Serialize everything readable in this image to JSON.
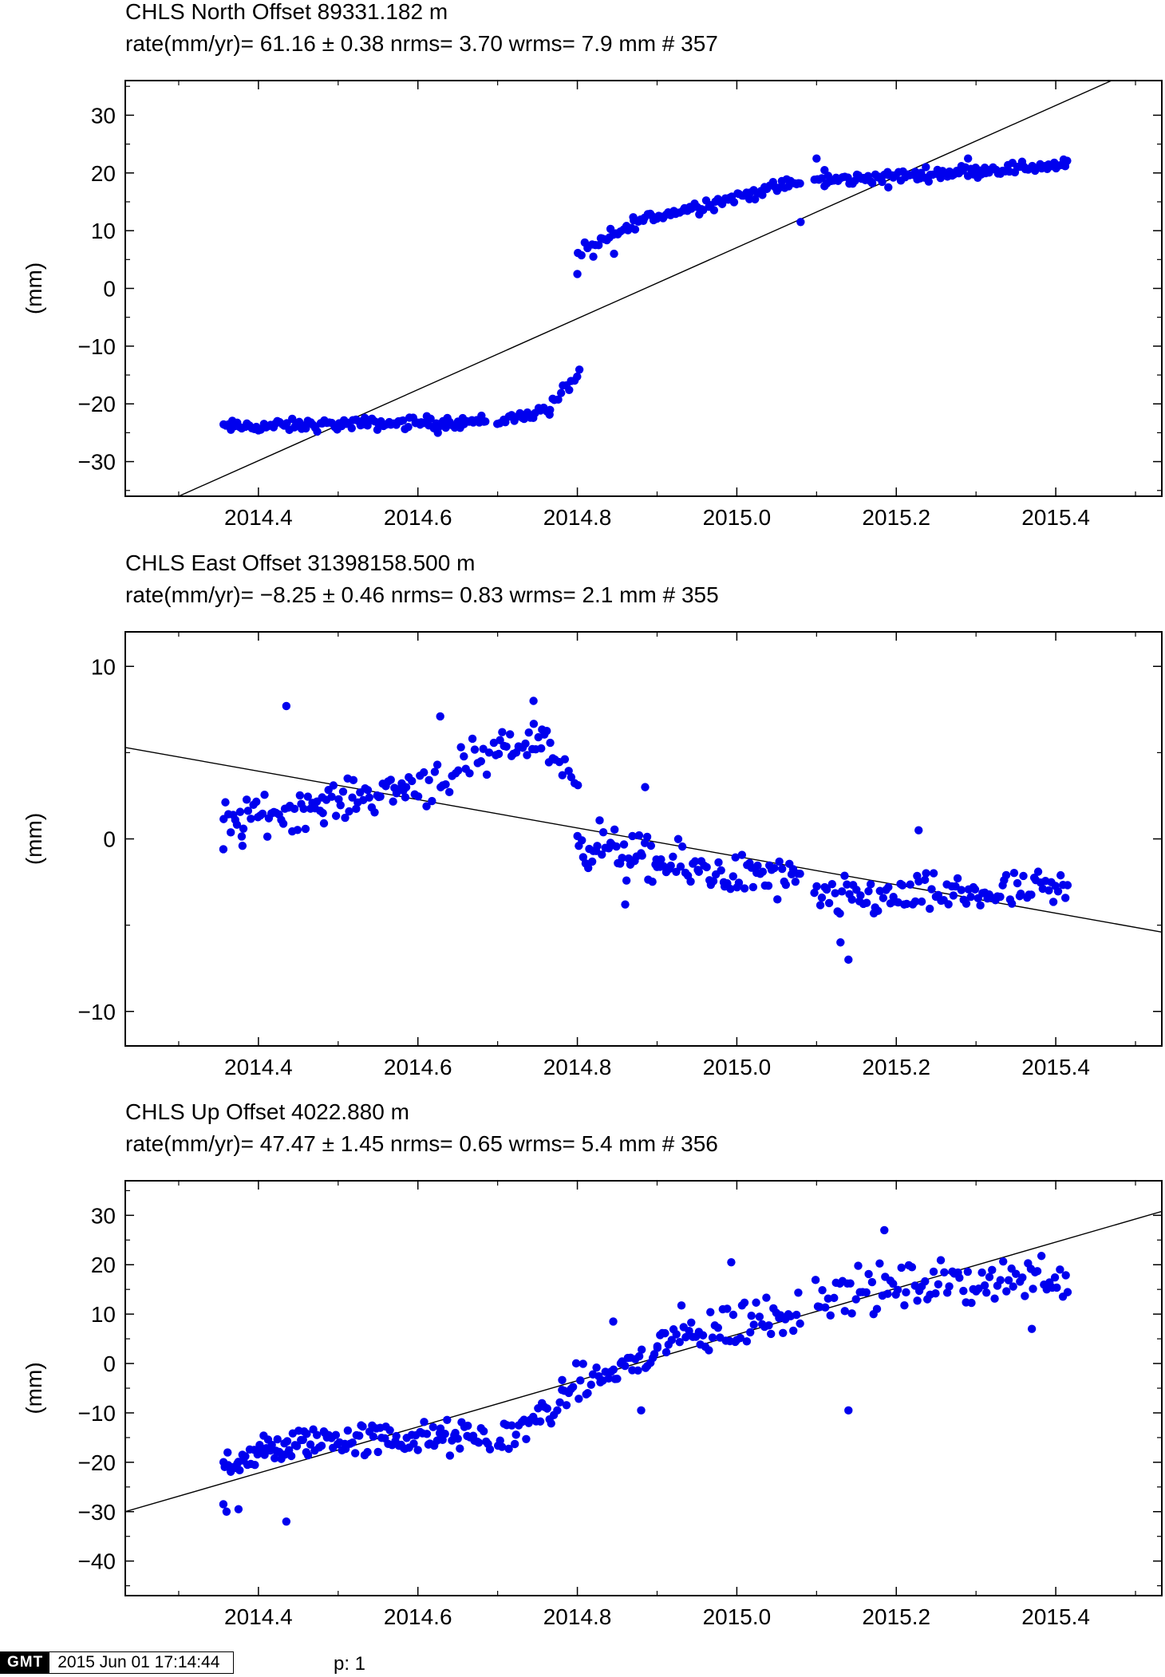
{
  "colors": {
    "points": "#0000ee",
    "fit_line": "#000000",
    "axes": "#000000",
    "background": "#ffffff"
  },
  "footer": {
    "logo_text": "GMT",
    "logo_icon": "gmt-logo-icon",
    "timestamp": "2015 Jun 01 17:14:44",
    "page": "p: 1"
  },
  "chart_data": [
    {
      "type": "scatter",
      "title": "CHLS  North Offset     89331.182 m",
      "subtitle": "rate(mm/yr)=   61.16 ±  0.38  nrms=  3.70  wrms=   7.9 mm # 357",
      "xlabel": "",
      "ylabel": "(mm)",
      "xlim": [
        2014.233,
        2015.533
      ],
      "ylim": [
        -36,
        36
      ],
      "xticks": [
        2014.4,
        2014.6,
        2014.8,
        2015.0,
        2015.2,
        2015.4
      ],
      "xtick_labels": [
        "2014.4",
        "2014.6",
        "2014.8",
        "2015.0",
        "2015.2",
        "2015.4"
      ],
      "yticks": [
        30,
        20,
        10,
        0,
        -10,
        -20,
        -30
      ],
      "ytick_labels": [
        "30",
        "20",
        "10",
        "0",
        "−10",
        "−20",
        "−30"
      ],
      "grid": false,
      "fit_line": [
        [
          2014.3,
          -36
        ],
        [
          2015.47,
          36
        ]
      ],
      "segments": [
        {
          "x0": 2014.356,
          "x1": 2014.685,
          "y0": -24.0,
          "y1": -23.0,
          "noise": 0.9,
          "n": 112
        },
        {
          "x0": 2014.7,
          "x1": 2014.765,
          "y0": -23.0,
          "y1": -21.0,
          "noise": 0.9,
          "n": 20
        },
        {
          "x0": 2014.765,
          "x1": 2014.803,
          "y0": -20.5,
          "y1": -14.5,
          "noise": 0.9,
          "n": 12
        },
        {
          "x0": 2014.801,
          "x1": 2014.83,
          "y0": 6.0,
          "y1": 8.0,
          "noise": 1.0,
          "n": 8
        },
        {
          "x0": 2014.83,
          "x1": 2014.87,
          "y0": 8.0,
          "y1": 11.0,
          "noise": 1.2,
          "n": 14
        },
        {
          "x0": 2014.87,
          "x1": 2015.08,
          "y0": 11.5,
          "y1": 18.5,
          "noise": 1.0,
          "n": 72
        },
        {
          "x0": 2015.098,
          "x1": 2015.415,
          "y0": 18.5,
          "y1": 21.5,
          "noise": 0.9,
          "n": 110
        }
      ],
      "outliers": [
        [
          2014.8,
          2.5
        ],
        [
          2014.82,
          5.5
        ],
        [
          2014.846,
          6.0
        ],
        [
          2015.08,
          11.5
        ],
        [
          2015.1,
          22.5
        ],
        [
          2015.11,
          20.5
        ],
        [
          2015.19,
          17.5
        ],
        [
          2015.29,
          22.5
        ],
        [
          2014.625,
          -25.0
        ]
      ]
    },
    {
      "type": "scatter",
      "title": "CHLS  East Offset  31398158.500 m",
      "subtitle": "rate(mm/yr)=   −8.25 ±  0.46  nrms=  0.83  wrms=   2.1 mm # 355",
      "xlabel": "",
      "ylabel": "(mm)",
      "xlim": [
        2014.233,
        2015.533
      ],
      "ylim": [
        -12,
        12
      ],
      "xticks": [
        2014.4,
        2014.6,
        2014.8,
        2015.0,
        2015.2,
        2015.4
      ],
      "xtick_labels": [
        "2014.4",
        "2014.6",
        "2014.8",
        "2015.0",
        "2015.2",
        "2015.4"
      ],
      "yticks": [
        10,
        0,
        -10
      ],
      "ytick_labels": [
        "10",
        "0",
        "−10"
      ],
      "grid": false,
      "fit_line": [
        [
          2014.233,
          5.3
        ],
        [
          2015.533,
          -5.4
        ]
      ],
      "segments": [
        {
          "x0": 2014.356,
          "x1": 2014.48,
          "y0": 1.0,
          "y1": 2.0,
          "noise": 1.0,
          "n": 44
        },
        {
          "x0": 2014.48,
          "x1": 2014.585,
          "y0": 2.0,
          "y1": 3.0,
          "noise": 0.9,
          "n": 38
        },
        {
          "x0": 2014.585,
          "x1": 2014.69,
          "y0": 3.0,
          "y1": 4.5,
          "noise": 1.2,
          "n": 30
        },
        {
          "x0": 2014.695,
          "x1": 2014.765,
          "y0": 5.0,
          "y1": 6.0,
          "noise": 0.8,
          "n": 26
        },
        {
          "x0": 2014.765,
          "x1": 2014.8,
          "y0": 5.0,
          "y1": 3.0,
          "noise": 0.9,
          "n": 10
        },
        {
          "x0": 2014.8,
          "x1": 2014.9,
          "y0": 0.0,
          "y1": -1.5,
          "noise": 1.2,
          "n": 40
        },
        {
          "x0": 2014.9,
          "x1": 2015.08,
          "y0": -1.5,
          "y1": -2.5,
          "noise": 1.1,
          "n": 62
        },
        {
          "x0": 2015.098,
          "x1": 2015.415,
          "y0": -3.5,
          "y1": -3.0,
          "noise": 1.0,
          "n": 105
        }
      ],
      "outliers": [
        [
          2014.435,
          7.7
        ],
        [
          2014.628,
          7.1
        ],
        [
          2014.745,
          8.0
        ],
        [
          2014.885,
          3.0
        ],
        [
          2015.228,
          0.5
        ],
        [
          2015.14,
          -7.0
        ],
        [
          2015.13,
          -6.0
        ],
        [
          2014.86,
          -3.8
        ],
        [
          2014.38,
          -0.4
        ],
        [
          2014.356,
          -0.6
        ]
      ]
    },
    {
      "type": "scatter",
      "title": "CHLS  Up Offset      4022.880 m",
      "subtitle": "rate(mm/yr)=   47.47 ±  1.45  nrms=  0.65  wrms=   5.4 mm # 356",
      "xlabel": "",
      "ylabel": "(mm)",
      "xlim": [
        2014.233,
        2015.533
      ],
      "ylim": [
        -47,
        37
      ],
      "xticks": [
        2014.4,
        2014.6,
        2014.8,
        2015.0,
        2015.2,
        2015.4
      ],
      "xtick_labels": [
        "2014.4",
        "2014.6",
        "2014.8",
        "2015.0",
        "2015.2",
        "2015.4"
      ],
      "yticks": [
        30,
        20,
        10,
        0,
        -10,
        -20,
        -30,
        -40
      ],
      "ytick_labels": [
        "30",
        "20",
        "10",
        "0",
        "−10",
        "−20",
        "−30",
        "−40"
      ],
      "grid": false,
      "fit_line": [
        [
          2014.233,
          -30.0
        ],
        [
          2015.533,
          30.8
        ]
      ],
      "segments": [
        {
          "x0": 2014.356,
          "x1": 2014.46,
          "y0": -20.0,
          "y1": -16.0,
          "noise": 3.0,
          "n": 45
        },
        {
          "x0": 2014.46,
          "x1": 2014.69,
          "y0": -15.5,
          "y1": -15.0,
          "noise": 3.0,
          "n": 88
        },
        {
          "x0": 2014.7,
          "x1": 2014.78,
          "y0": -16.0,
          "y1": -8.0,
          "noise": 3.0,
          "n": 28
        },
        {
          "x0": 2014.78,
          "x1": 2014.9,
          "y0": -6.0,
          "y1": 2.0,
          "noise": 3.2,
          "n": 40
        },
        {
          "x0": 2014.9,
          "x1": 2015.08,
          "y0": 4.0,
          "y1": 11.0,
          "noise": 4.5,
          "n": 60
        },
        {
          "x0": 2015.098,
          "x1": 2015.415,
          "y0": 14.0,
          "y1": 18.0,
          "noise": 4.0,
          "n": 95
        }
      ],
      "outliers": [
        [
          2014.356,
          -28.5
        ],
        [
          2014.36,
          -30.0
        ],
        [
          2014.375,
          -29.5
        ],
        [
          2014.435,
          -32.0
        ],
        [
          2015.14,
          -9.5
        ],
        [
          2015.185,
          27.0
        ],
        [
          2015.37,
          7.0
        ],
        [
          2014.845,
          8.5
        ],
        [
          2014.88,
          -9.5
        ],
        [
          2014.993,
          20.5
        ]
      ]
    }
  ]
}
